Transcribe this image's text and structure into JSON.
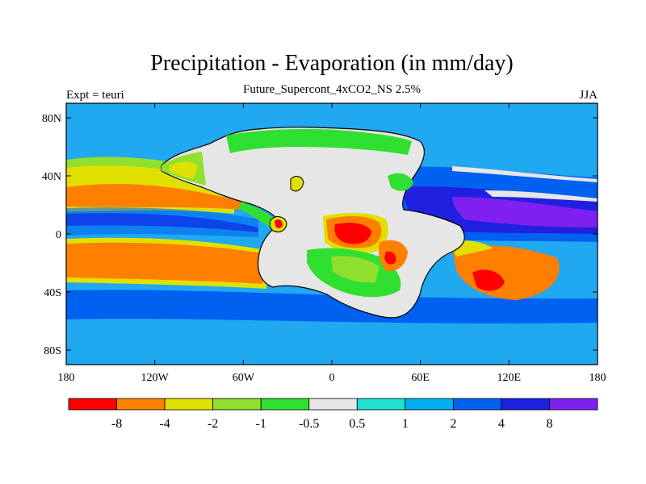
{
  "title": "Precipitation - Evaporation (in mm/day)",
  "subtitle": "Future_Supercont_4xCO2_NS 2.5%",
  "left_label": "Expt = teuri",
  "right_label": "JJA",
  "y_ticks": [
    {
      "label": "80N",
      "lat": 80
    },
    {
      "label": "40N",
      "lat": 40
    },
    {
      "label": "0",
      "lat": 0
    },
    {
      "label": "40S",
      "lat": -40
    },
    {
      "label": "80S",
      "lat": -80
    }
  ],
  "x_ticks": [
    {
      "label": "180",
      "lon": -180
    },
    {
      "label": "120W",
      "lon": -120
    },
    {
      "label": "60W",
      "lon": -60
    },
    {
      "label": "0",
      "lon": 0
    },
    {
      "label": "60E",
      "lon": 60
    },
    {
      "label": "120E",
      "lon": 120
    },
    {
      "label": "180",
      "lon": 180
    }
  ],
  "colorbar": {
    "colors": [
      "#ff0000",
      "#ff8000",
      "#e0e000",
      "#90e030",
      "#30e030",
      "#e6e6e6",
      "#20e0d0",
      "#00b0f0",
      "#0060f0",
      "#2020e0",
      "#8020f0"
    ],
    "labels": [
      "-8",
      "-4",
      "-2",
      "-1",
      "-0.5",
      "0.5",
      "1",
      "2",
      "4",
      "8"
    ]
  },
  "legend_colors": {
    "ocean_base": "#20a8f0",
    "strong_wet": "#8020f0",
    "wet": "#2020e0",
    "moist": "#0060f0",
    "dry_ocean": "#ff8000",
    "very_dry": "#ff0000",
    "near_zero": "#e6e6e6",
    "slight_dry": "#30e030",
    "mod_dry": "#90e030",
    "dry": "#e0e000",
    "slight_wet": "#20e0d0"
  }
}
